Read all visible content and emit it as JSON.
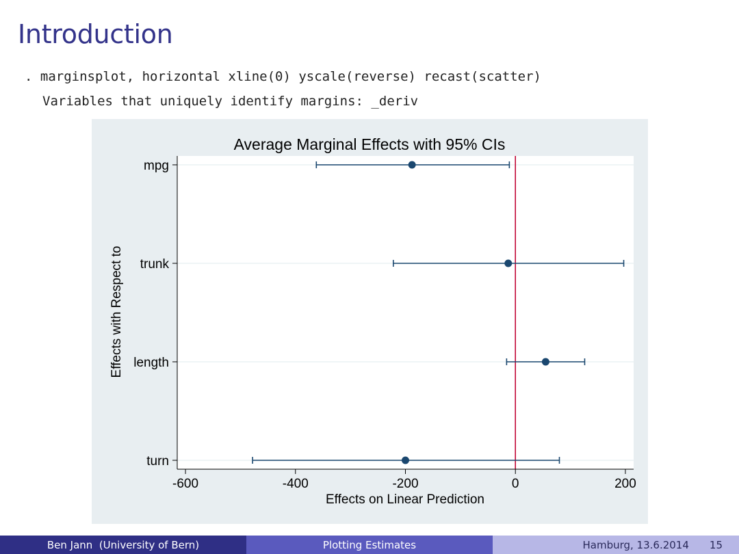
{
  "slide": {
    "title": "Introduction",
    "code_command": ". marginsplot, horizontal xline(0) yscale(reverse) recast(scatter)",
    "code_output": "Variables that uniquely identify margins: _deriv"
  },
  "colors": {
    "title": "#33338a",
    "chart_background": "#e8eef1",
    "plot_background": "#ffffff",
    "marker": "#1a476f",
    "reference_line": "#c10534",
    "grid": "#eaf2f3",
    "footer_left": "#2f2f85",
    "footer_mid": "#5a5abe",
    "footer_right": "#b7b7e6"
  },
  "chart_data": {
    "type": "scatter",
    "orientation": "horizontal",
    "title": "Average Marginal Effects with 95% CIs",
    "xlabel": "Effects on Linear Prediction",
    "ylabel": "Effects with Respect to",
    "xlim": [
      -615,
      215
    ],
    "x_ticks": [
      -600,
      -400,
      -200,
      0,
      200
    ],
    "x_tick_labels": [
      "-600",
      "-400",
      "-200",
      "0",
      "200"
    ],
    "reference_line_x": 0,
    "y_reversed": true,
    "categories": [
      "mpg",
      "trunk",
      "length",
      "turn"
    ],
    "points": [
      {
        "label": "mpg",
        "estimate": -188,
        "ci_low": -362,
        "ci_high": -11
      },
      {
        "label": "trunk",
        "estimate": -13,
        "ci_low": -222,
        "ci_high": 197
      },
      {
        "label": "length",
        "estimate": 55,
        "ci_low": -16,
        "ci_high": 126
      },
      {
        "label": "turn",
        "estimate": -200,
        "ci_low": -478,
        "ci_high": 80
      }
    ]
  },
  "footer": {
    "author": "Ben Jann  (University of Bern)",
    "talk_title": "Plotting Estimates",
    "venue_date": "Hamburg, 13.6.2014",
    "page": "15"
  }
}
